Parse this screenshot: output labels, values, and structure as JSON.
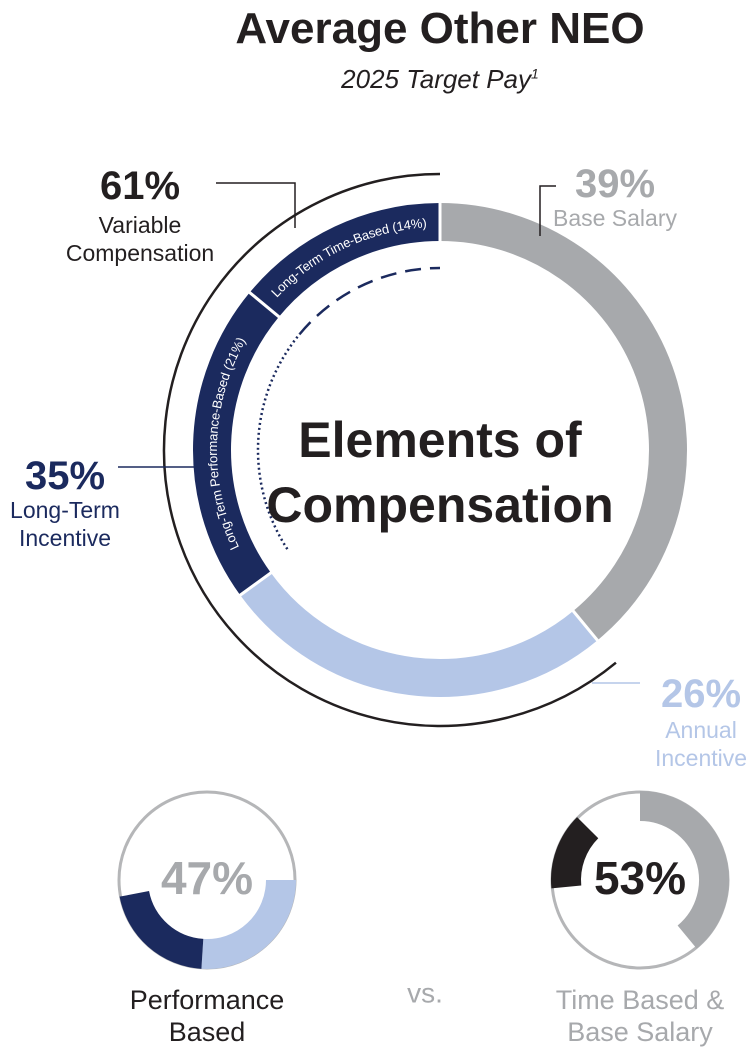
{
  "chart_data": [
    {
      "type": "donut",
      "title": "Average Other NEO",
      "subtitle": "2025 Target Pay",
      "subtitle_note": "1",
      "center_label": "Elements of Compensation",
      "categories": [
        "Base Salary",
        "Annual Incentive",
        "Long-Term Performance-Based (21%)",
        "Long-Term Time-Based (14%)"
      ],
      "values": [
        39,
        26,
        21,
        14
      ],
      "value_labels": [
        "39%",
        "26%",
        null,
        null
      ],
      "colors": [
        "#a7a9ac",
        "#b4c6e7",
        "#1b2a5e",
        "#1b2a5e"
      ],
      "groups": [
        {
          "name": "Variable Compensation",
          "value": 61,
          "value_label": "61%",
          "color": "#231f20"
        },
        {
          "name": "Long-Term Incentive",
          "value": 35,
          "value_label": "35%",
          "color": "#1b2a5e"
        }
      ]
    },
    {
      "type": "donut",
      "label": "Performance Based",
      "value": 47,
      "value_label": "47%",
      "values": [
        26,
        21
      ],
      "colors": [
        "#b4c6e7",
        "#1b2a5e"
      ]
    },
    {
      "type": "donut",
      "label": "Time Based & Base Salary",
      "value": 53,
      "value_label": "53%",
      "values": [
        39,
        14
      ],
      "colors": [
        "#a7a9ac",
        "#231f20"
      ]
    }
  ],
  "vs_label": "vs."
}
